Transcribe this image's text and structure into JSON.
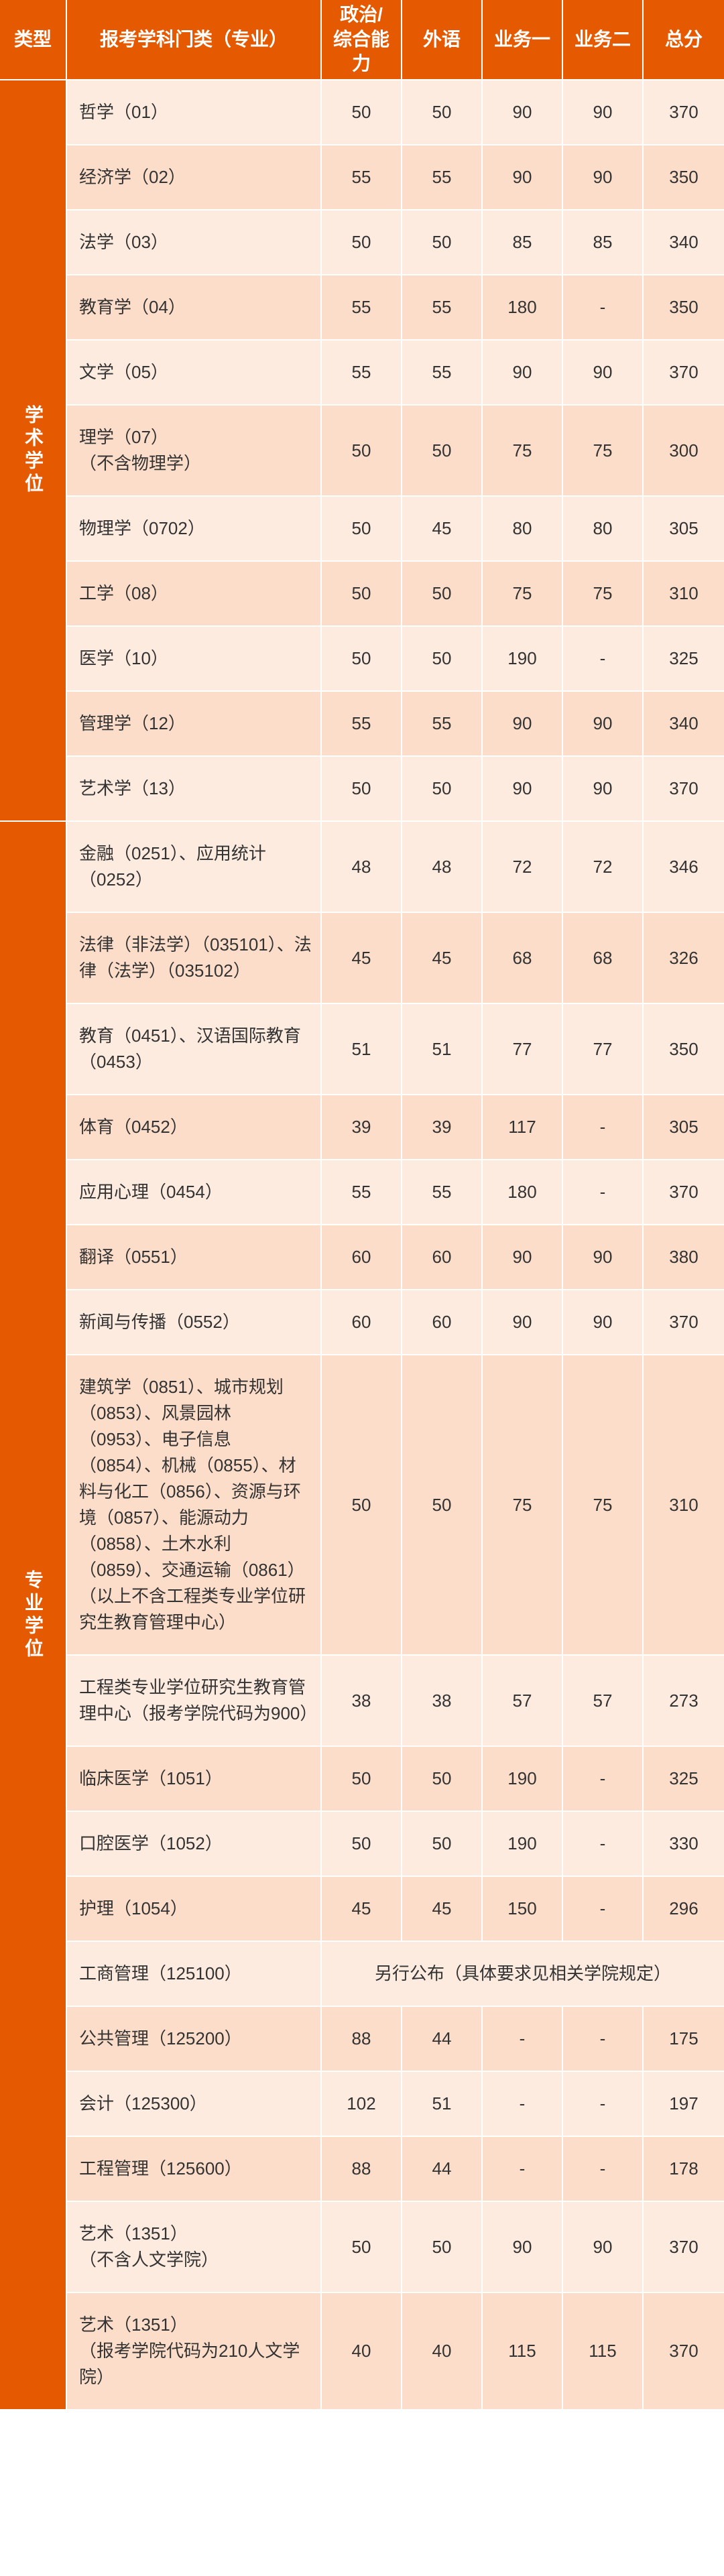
{
  "headers": {
    "type": "类型",
    "subject": "报考学科门类（专业）",
    "col1": "政治/\n综合能力",
    "col2": "外语",
    "col3": "业务一",
    "col4": "业务二",
    "col5": "总分"
  },
  "sections": [
    {
      "typeLabel": "学术学位",
      "rows": [
        {
          "subject": "哲学（01）",
          "c1": "50",
          "c2": "50",
          "c3": "90",
          "c4": "90",
          "c5": "370"
        },
        {
          "subject": "经济学（02）",
          "c1": "55",
          "c2": "55",
          "c3": "90",
          "c4": "90",
          "c5": "350"
        },
        {
          "subject": "法学（03）",
          "c1": "50",
          "c2": "50",
          "c3": "85",
          "c4": "85",
          "c5": "340"
        },
        {
          "subject": "教育学（04）",
          "c1": "55",
          "c2": "55",
          "c3": "180",
          "c4": "-",
          "c5": "350"
        },
        {
          "subject": "文学（05）",
          "c1": "55",
          "c2": "55",
          "c3": "90",
          "c4": "90",
          "c5": "370"
        },
        {
          "subject": "理学（07）\n（不含物理学）",
          "c1": "50",
          "c2": "50",
          "c3": "75",
          "c4": "75",
          "c5": "300"
        },
        {
          "subject": "物理学（0702）",
          "c1": "50",
          "c2": "45",
          "c3": "80",
          "c4": "80",
          "c5": "305"
        },
        {
          "subject": "工学（08）",
          "c1": "50",
          "c2": "50",
          "c3": "75",
          "c4": "75",
          "c5": "310"
        },
        {
          "subject": "医学（10）",
          "c1": "50",
          "c2": "50",
          "c3": "190",
          "c4": "-",
          "c5": "325"
        },
        {
          "subject": "管理学（12）",
          "c1": "55",
          "c2": "55",
          "c3": "90",
          "c4": "90",
          "c5": "340"
        },
        {
          "subject": "艺术学（13）",
          "c1": "50",
          "c2": "50",
          "c3": "90",
          "c4": "90",
          "c5": "370"
        }
      ]
    },
    {
      "typeLabel": "专业学位",
      "rows": [
        {
          "subject": "金融（0251）、应用统计（0252）",
          "c1": "48",
          "c2": "48",
          "c3": "72",
          "c4": "72",
          "c5": "346"
        },
        {
          "subject": "法律（非法学）（035101）、法律（法学）（035102）",
          "c1": "45",
          "c2": "45",
          "c3": "68",
          "c4": "68",
          "c5": "326"
        },
        {
          "subject": "教育（0451）、汉语国际教育（0453）",
          "c1": "51",
          "c2": "51",
          "c3": "77",
          "c4": "77",
          "c5": "350"
        },
        {
          "subject": "体育（0452）",
          "c1": "39",
          "c2": "39",
          "c3": "117",
          "c4": "-",
          "c5": "305"
        },
        {
          "subject": "应用心理（0454）",
          "c1": "55",
          "c2": "55",
          "c3": "180",
          "c4": "-",
          "c5": "370"
        },
        {
          "subject": "翻译（0551）",
          "c1": "60",
          "c2": "60",
          "c3": "90",
          "c4": "90",
          "c5": "380"
        },
        {
          "subject": "新闻与传播（0552）",
          "c1": "60",
          "c2": "60",
          "c3": "90",
          "c4": "90",
          "c5": "370"
        },
        {
          "subject": "建筑学（0851）、城市规划（0853）、风景园林（0953）、电子信息（0854）、机械（0855）、材料与化工（0856）、资源与环境（0857）、能源动力（0858）、土木水利（0859）、交通运输（0861）（以上不含工程类专业学位研究生教育管理中心）",
          "c1": "50",
          "c2": "50",
          "c3": "75",
          "c4": "75",
          "c5": "310"
        },
        {
          "subject": "工程类专业学位研究生教育管理中心（报考学院代码为900）",
          "c1": "38",
          "c2": "38",
          "c3": "57",
          "c4": "57",
          "c5": "273"
        },
        {
          "subject": "临床医学（1051）",
          "c1": "50",
          "c2": "50",
          "c3": "190",
          "c4": "-",
          "c5": "325"
        },
        {
          "subject": "口腔医学（1052）",
          "c1": "50",
          "c2": "50",
          "c3": "190",
          "c4": "-",
          "c5": "330"
        },
        {
          "subject": "护理（1054）",
          "c1": "45",
          "c2": "45",
          "c3": "150",
          "c4": "-",
          "c5": "296"
        },
        {
          "subject": "工商管理（125100）",
          "merged": "另行公布（具体要求见相关学院规定）"
        },
        {
          "subject": "公共管理（125200）",
          "c1": "88",
          "c2": "44",
          "c3": "-",
          "c4": "-",
          "c5": "175"
        },
        {
          "subject": "会计（125300）",
          "c1": "102",
          "c2": "51",
          "c3": "-",
          "c4": "-",
          "c5": "197"
        },
        {
          "subject": "工程管理（125600）",
          "c1": "88",
          "c2": "44",
          "c3": "-",
          "c4": "-",
          "c5": "178"
        },
        {
          "subject": "艺术（1351）\n（不含人文学院）",
          "c1": "50",
          "c2": "50",
          "c3": "90",
          "c4": "90",
          "c5": "370"
        },
        {
          "subject": "艺术（1351）\n（报考学院代码为210人文学院）",
          "c1": "40",
          "c2": "40",
          "c3": "115",
          "c4": "115",
          "c5": "370"
        }
      ]
    }
  ],
  "colors": {
    "headerBg": "#e55a00",
    "rowEven": "#fdebdf",
    "rowOdd": "#fcddc9"
  }
}
